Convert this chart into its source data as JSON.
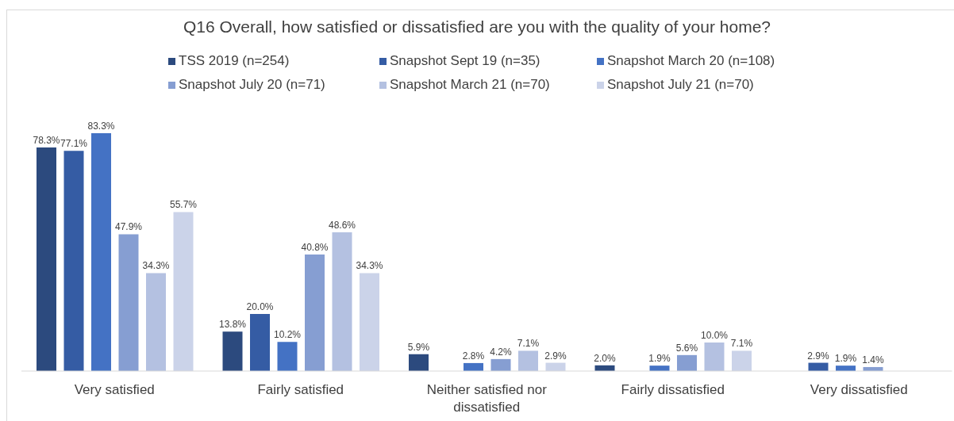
{
  "chart_data": {
    "type": "bar",
    "title": "Q16 Overall, how satisfied or dissatisfied are you with the quality of your home?",
    "categories": [
      "Very satisfied",
      "Fairly satisfied",
      "Neither satisfied nor dissatisfied",
      "Fairly dissatisfied",
      "Very dissatisfied"
    ],
    "series": [
      {
        "name": "TSS 2019 (n=254)",
        "color": "#2c4a7e",
        "values": [
          78.3,
          13.8,
          5.9,
          2.0,
          null
        ],
        "value_labels": [
          "78.3%",
          "13.8%",
          "5.9%",
          "2.0%",
          null
        ]
      },
      {
        "name": "Snapshot Sept 19 (n=35)",
        "color": "#355ca4",
        "values": [
          77.1,
          20.0,
          null,
          null,
          2.9
        ],
        "value_labels": [
          "77.1%",
          "20.0%",
          null,
          null,
          "2.9%"
        ]
      },
      {
        "name": "Snapshot March 20 (n=108)",
        "color": "#4472c4",
        "values": [
          83.3,
          10.2,
          2.8,
          1.9,
          1.9
        ],
        "value_labels": [
          "83.3%",
          "10.2%",
          "2.8%",
          "1.9%",
          "1.9%"
        ]
      },
      {
        "name": "Snapshot July 20 (n=71)",
        "color": "#869ed2",
        "values": [
          47.9,
          40.8,
          4.2,
          5.6,
          1.4
        ],
        "value_labels": [
          "47.9%",
          "40.8%",
          "4.2%",
          "5.6%",
          "1.4%"
        ]
      },
      {
        "name": "Snapshot March 21 (n=70)",
        "color": "#b4c1e1",
        "values": [
          34.3,
          48.6,
          7.1,
          10.0,
          null
        ],
        "value_labels": [
          "34.3%",
          "48.6%",
          "7.1%",
          "10.0%",
          null
        ]
      },
      {
        "name": "Snapshot July 21 (n=70)",
        "color": "#cbd3e9",
        "values": [
          55.7,
          34.3,
          2.9,
          7.1,
          null
        ],
        "value_labels": [
          "55.7%",
          "34.3%",
          "2.9%",
          "7.1%",
          null
        ]
      }
    ],
    "legend": "top",
    "tick_labels": "x"
  }
}
